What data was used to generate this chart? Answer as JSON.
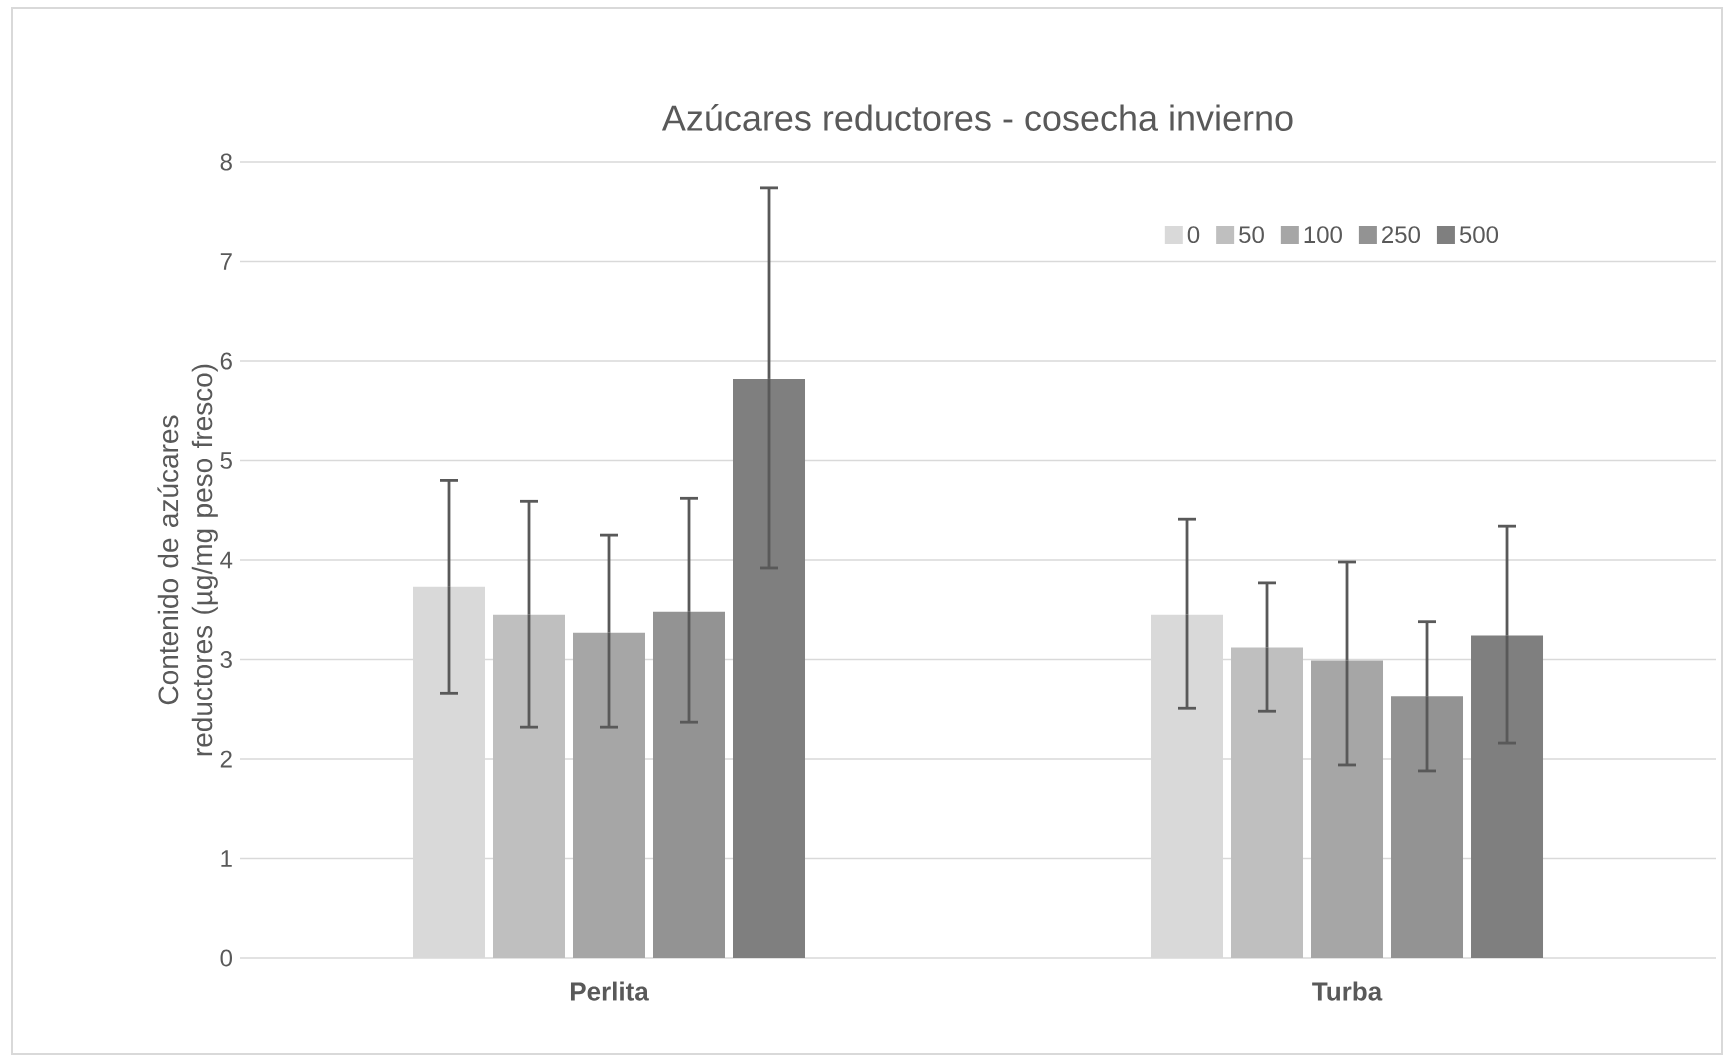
{
  "chart_data": {
    "type": "bar",
    "title": "Azúcares reductores - cosecha invierno",
    "ylabel": "Contenido de azúcares reductores (µg/mg peso fresco)",
    "categories": [
      "Perlita",
      "Turba"
    ],
    "series": [
      {
        "name": "0",
        "color": "#d9d9d9",
        "values": [
          3.73,
          3.45
        ],
        "errors": [
          [
            2.66,
            4.8
          ],
          [
            2.51,
            4.41
          ]
        ]
      },
      {
        "name": "50",
        "color": "#bfbfbf",
        "values": [
          3.45,
          3.12
        ],
        "errors": [
          [
            2.32,
            4.59
          ],
          [
            2.48,
            3.77
          ]
        ]
      },
      {
        "name": "100",
        "color": "#a6a6a6",
        "values": [
          3.27,
          2.99
        ],
        "errors": [
          [
            2.32,
            4.25
          ],
          [
            1.94,
            3.98
          ]
        ]
      },
      {
        "name": "250",
        "color": "#939393",
        "values": [
          3.48,
          2.63
        ],
        "errors": [
          [
            2.37,
            4.62
          ],
          [
            1.88,
            3.38
          ]
        ]
      },
      {
        "name": "500",
        "color": "#7f7f7f",
        "values": [
          5.82,
          3.24
        ],
        "errors": [
          [
            3.92,
            7.74
          ],
          [
            2.16,
            4.34
          ]
        ]
      }
    ],
    "ylim": [
      0,
      8
    ],
    "yticks": [
      0,
      1,
      2,
      3,
      4,
      5,
      6,
      7,
      8
    ],
    "grid": "y",
    "legend": "top right"
  }
}
